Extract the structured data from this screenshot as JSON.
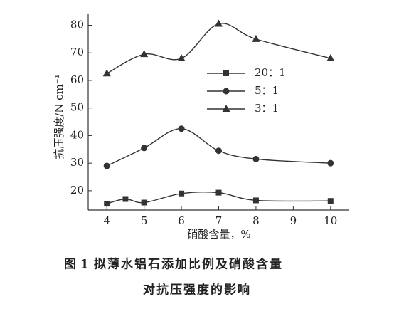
{
  "chart_data": {
    "type": "line",
    "x_label": "硝酸含量，%",
    "y_label": "抗压强度/N cm⁻¹",
    "caption_label": "图 1",
    "caption": [
      "拟薄水铝石添加比例及硝酸含量",
      "对抗压强度的影响"
    ],
    "xlim": [
      3.5,
      10.5
    ],
    "xticks": [
      4,
      5,
      6,
      7,
      8,
      9,
      10
    ],
    "ylim": [
      13,
      84
    ],
    "yticks": [
      20,
      30,
      40,
      50,
      60,
      70,
      80
    ],
    "series": [
      {
        "name": "20：1",
        "marker": "square",
        "color": "#333333",
        "x": [
          4,
          4.5,
          5,
          6,
          7,
          8,
          10
        ],
        "values": [
          15.3,
          17,
          15.7,
          19,
          19.3,
          16.5,
          16.3
        ]
      },
      {
        "name": "5：1",
        "marker": "circle",
        "color": "#333333",
        "x": [
          4,
          5,
          6,
          7,
          8,
          10
        ],
        "values": [
          29,
          35.5,
          42.5,
          34.5,
          31.5,
          30
        ]
      },
      {
        "name": "3：1",
        "marker": "triangle",
        "color": "#333333",
        "x": [
          4,
          5,
          6,
          7,
          8,
          10
        ],
        "values": [
          62.5,
          69.5,
          68,
          80.5,
          75,
          68
        ]
      }
    ]
  }
}
